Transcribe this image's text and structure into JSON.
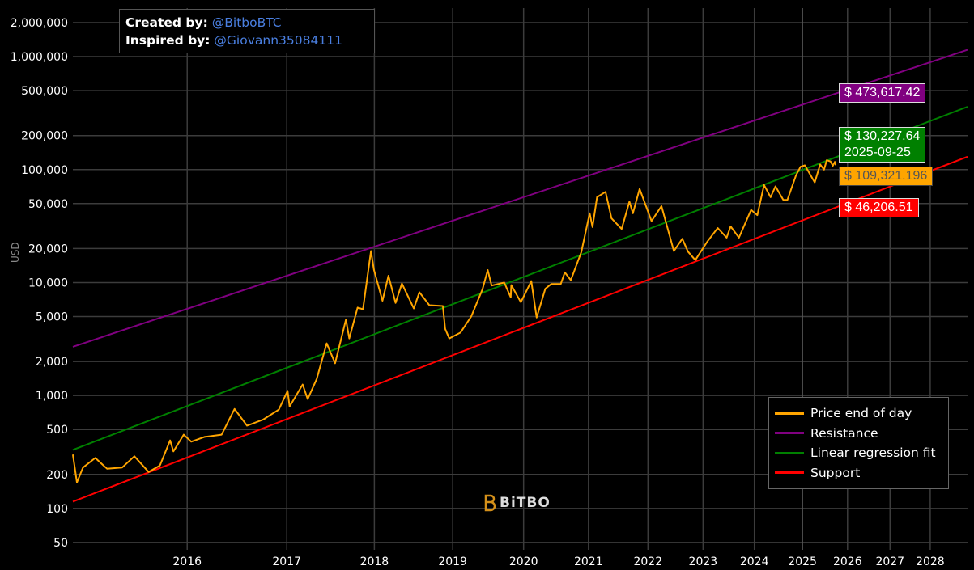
{
  "credit": {
    "created_label": "Created by:",
    "created_value": "@BitboBTC",
    "inspired_label": "Inspired by:",
    "inspired_value": "@Giovann35084111"
  },
  "logo_text": "BiTBO",
  "colors": {
    "price": "#ffa500",
    "resistance": "#800080",
    "regression": "#008000",
    "support": "#ff0000",
    "grid": "#3c3c3c"
  },
  "chart_data": {
    "type": "line",
    "ylabel": "USD",
    "yscale": "log",
    "xscale": "log-days-since-2009-01-03",
    "ylim": [
      40,
      2300000
    ],
    "xlim": [
      "2015-01-02",
      "2028-12-23"
    ],
    "grid": true,
    "legend_position": "bottom-right",
    "y_ticks": [
      {
        "v": 2000000,
        "label": "2,000,000"
      },
      {
        "v": 1000000,
        "label": "1,000,000"
      },
      {
        "v": 500000,
        "label": "500,000"
      },
      {
        "v": 200000,
        "label": "200,000"
      },
      {
        "v": 100000,
        "label": "100,000"
      },
      {
        "v": 50000,
        "label": "50,000"
      },
      {
        "v": 20000,
        "label": "20,000"
      },
      {
        "v": 10000,
        "label": "10,000"
      },
      {
        "v": 5000,
        "label": "5,000"
      },
      {
        "v": 2000,
        "label": "2,000"
      },
      {
        "v": 1000,
        "label": "1,000"
      },
      {
        "v": 500,
        "label": "500"
      },
      {
        "v": 200,
        "label": "200"
      },
      {
        "v": 100,
        "label": "100"
      },
      {
        "v": 50,
        "label": "50"
      }
    ],
    "x_ticks": [
      "2016",
      "2017",
      "2018",
      "2019",
      "2020",
      "2021",
      "2022",
      "2023",
      "2024",
      "2025",
      "2026",
      "2027",
      "2028"
    ],
    "legend": [
      "Price end of day",
      "Resistance",
      "Linear regression fit",
      "Support"
    ],
    "series": [
      {
        "name": "Price end of day",
        "points": [
          [
            "2015-01-02",
            300
          ],
          [
            "2015-01-14",
            170
          ],
          [
            "2015-02-01",
            230
          ],
          [
            "2015-03-10",
            280
          ],
          [
            "2015-04-15",
            225
          ],
          [
            "2015-06-01",
            230
          ],
          [
            "2015-07-10",
            290
          ],
          [
            "2015-08-25",
            210
          ],
          [
            "2015-10-01",
            240
          ],
          [
            "2015-11-04",
            400
          ],
          [
            "2015-11-15",
            320
          ],
          [
            "2015-12-20",
            450
          ],
          [
            "2016-01-15",
            390
          ],
          [
            "2016-03-01",
            430
          ],
          [
            "2016-05-01",
            450
          ],
          [
            "2016-06-17",
            760
          ],
          [
            "2016-08-02",
            540
          ],
          [
            "2016-10-01",
            610
          ],
          [
            "2016-12-01",
            750
          ],
          [
            "2017-01-04",
            1100
          ],
          [
            "2017-01-12",
            800
          ],
          [
            "2017-03-05",
            1250
          ],
          [
            "2017-03-25",
            930
          ],
          [
            "2017-05-01",
            1400
          ],
          [
            "2017-06-11",
            2900
          ],
          [
            "2017-07-16",
            1930
          ],
          [
            "2017-08-31",
            4700
          ],
          [
            "2017-09-14",
            3200
          ],
          [
            "2017-10-20",
            6000
          ],
          [
            "2017-11-12",
            5800
          ],
          [
            "2017-12-17",
            19000
          ],
          [
            "2017-12-30",
            13000
          ],
          [
            "2018-02-06",
            6900
          ],
          [
            "2018-03-05",
            11500
          ],
          [
            "2018-04-06",
            6600
          ],
          [
            "2018-05-05",
            9800
          ],
          [
            "2018-06-29",
            5900
          ],
          [
            "2018-07-25",
            8200
          ],
          [
            "2018-09-10",
            6300
          ],
          [
            "2018-11-14",
            6200
          ],
          [
            "2018-11-25",
            3900
          ],
          [
            "2018-12-15",
            3200
          ],
          [
            "2019-02-08",
            3600
          ],
          [
            "2019-04-03",
            5000
          ],
          [
            "2019-05-30",
            8700
          ],
          [
            "2019-06-26",
            12900
          ],
          [
            "2019-07-16",
            9400
          ],
          [
            "2019-09-20",
            10000
          ],
          [
            "2019-10-24",
            7400
          ],
          [
            "2019-10-27",
            9500
          ],
          [
            "2019-12-17",
            6700
          ],
          [
            "2020-02-12",
            10300
          ],
          [
            "2020-03-12",
            4900
          ],
          [
            "2020-04-29",
            8800
          ],
          [
            "2020-06-01",
            9700
          ],
          [
            "2020-07-25",
            9700
          ],
          [
            "2020-08-17",
            12300
          ],
          [
            "2020-09-20",
            10500
          ],
          [
            "2020-11-20",
            18600
          ],
          [
            "2021-01-08",
            41000
          ],
          [
            "2021-01-25",
            31000
          ],
          [
            "2021-02-21",
            57000
          ],
          [
            "2021-04-13",
            63500
          ],
          [
            "2021-05-19",
            37000
          ],
          [
            "2021-07-20",
            29800
          ],
          [
            "2021-09-06",
            52000
          ],
          [
            "2021-09-28",
            41000
          ],
          [
            "2021-11-09",
            67500
          ],
          [
            "2022-01-24",
            35000
          ],
          [
            "2022-03-29",
            47500
          ],
          [
            "2022-06-18",
            19000
          ],
          [
            "2022-08-13",
            24400
          ],
          [
            "2022-09-20",
            18800
          ],
          [
            "2022-11-09",
            15800
          ],
          [
            "2023-01-31",
            23100
          ],
          [
            "2023-04-13",
            30400
          ],
          [
            "2023-06-15",
            25000
          ],
          [
            "2023-07-13",
            31400
          ],
          [
            "2023-09-11",
            25000
          ],
          [
            "2023-12-08",
            44000
          ],
          [
            "2024-01-23",
            39500
          ],
          [
            "2024-03-13",
            73000
          ],
          [
            "2024-05-01",
            57000
          ],
          [
            "2024-06-07",
            71000
          ],
          [
            "2024-08-05",
            54000
          ],
          [
            "2024-09-06",
            53900
          ],
          [
            "2024-11-12",
            89000
          ],
          [
            "2024-12-17",
            106000
          ],
          [
            "2025-01-20",
            109000
          ],
          [
            "2025-04-08",
            77000
          ],
          [
            "2025-05-22",
            111000
          ],
          [
            "2025-06-22",
            100000
          ],
          [
            "2025-07-14",
            121000
          ],
          [
            "2025-08-14",
            118000
          ],
          [
            "2025-09-01",
            108000
          ],
          [
            "2025-09-18",
            117000
          ],
          [
            "2025-09-25",
            109321.196
          ]
        ]
      },
      {
        "name": "Resistance",
        "points": [
          [
            "2015-01-02",
            2700
          ],
          [
            "2028-12-23",
            1150000
          ]
        ]
      },
      {
        "name": "Linear regression fit",
        "points": [
          [
            "2015-01-02",
            330
          ],
          [
            "2028-12-23",
            360000
          ]
        ]
      },
      {
        "name": "Support",
        "points": [
          [
            "2015-01-02",
            115
          ],
          [
            "2028-12-23",
            130000
          ]
        ]
      }
    ],
    "annotations": {
      "resistance_value": "$ 473,617.42",
      "regression_value": "$ 130,227.64",
      "regression_date": "2025-09-25",
      "price_value": "$ 109,321.196",
      "support_value": "$ 46,206.51"
    }
  }
}
